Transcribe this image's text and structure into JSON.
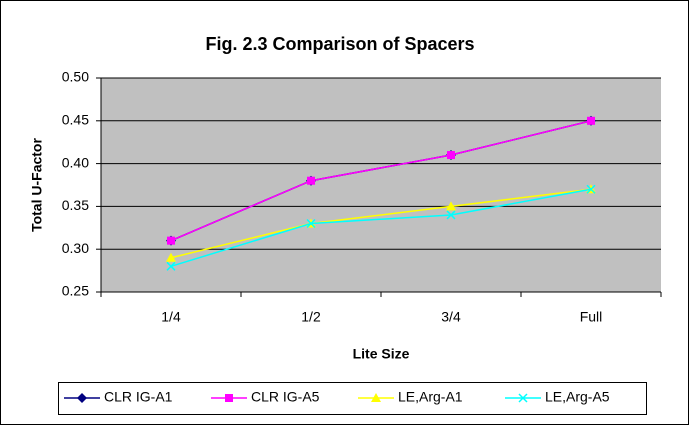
{
  "chart_data": {
    "type": "line",
    "title": "Fig. 2.3  Comparison of Spacers",
    "x_label": "Lite Size",
    "y_label": "Total U-Factor",
    "categories": [
      "1/4",
      "1/2",
      "3/4",
      "Full"
    ],
    "series": [
      {
        "name": "CLR IG-A1",
        "color": "#000080",
        "marker": "diamond",
        "values": [
          0.31,
          0.38,
          0.41,
          0.45
        ]
      },
      {
        "name": "CLR IG-A5",
        "color": "#ff00ff",
        "marker": "square",
        "values": [
          0.31,
          0.38,
          0.41,
          0.45
        ]
      },
      {
        "name": "LE,Arg-A1",
        "color": "#ffff00",
        "marker": "triangle",
        "values": [
          0.29,
          0.33,
          0.35,
          0.37
        ]
      },
      {
        "name": "LE,Arg-A5",
        "color": "#00ffff",
        "marker": "x",
        "values": [
          0.28,
          0.33,
          0.34,
          0.37
        ]
      }
    ],
    "ylim": [
      0.25,
      0.5
    ],
    "yticks": [
      {
        "value": 0.25,
        "label": "0.25"
      },
      {
        "value": 0.3,
        "label": "0.30"
      },
      {
        "value": 0.35,
        "label": "0.35"
      },
      {
        "value": 0.4,
        "label": "0.40"
      },
      {
        "value": 0.45,
        "label": "0.45"
      },
      {
        "value": 0.5,
        "label": "0.50"
      }
    ],
    "grid": true,
    "plot_background": "#c0c0c0",
    "legend": "bottom"
  }
}
